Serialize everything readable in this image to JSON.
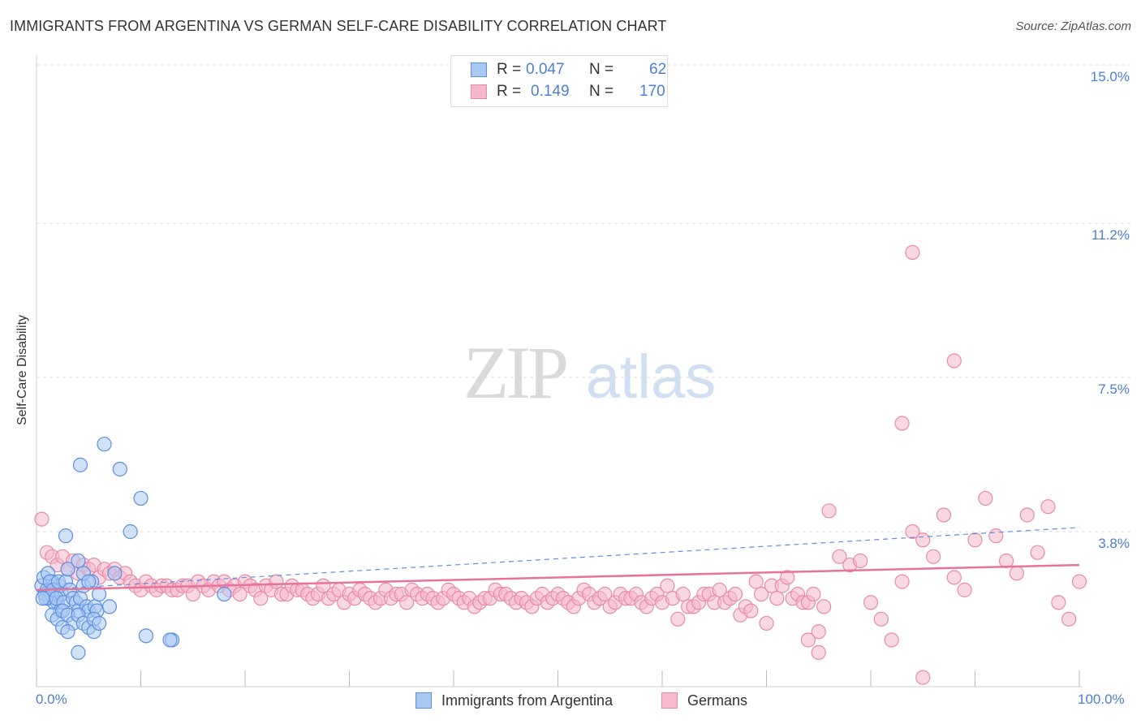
{
  "title": "IMMIGRANTS FROM ARGENTINA VS GERMAN SELF-CARE DISABILITY CORRELATION CHART",
  "source": "Source: ZipAtlas.com",
  "colors": {
    "blue_fill": "#a9c8f2",
    "blue_stroke": "#5b8fe0",
    "blue_line": "#5b8fe0",
    "pink_fill": "#f6b8cb",
    "pink_stroke": "#e88aa8",
    "pink_line": "#e8739a",
    "axis_text": "#4a7fd4",
    "grid": "#dddddd"
  },
  "stats": [
    {
      "r_label": "R =",
      "r_value": "0.047",
      "n_label": "N =",
      "n_value": "62",
      "series": "blue"
    },
    {
      "r_label": "R =",
      "r_value": "0.149",
      "n_label": "N =",
      "n_value": "170",
      "series": "pink"
    }
  ],
  "legend": [
    {
      "label": "Immigrants from Argentina",
      "series": "blue"
    },
    {
      "label": "Germans",
      "series": "pink"
    }
  ],
  "chart_data": {
    "type": "scatter",
    "title": "IMMIGRANTS FROM ARGENTINA VS GERMAN SELF-CARE DISABILITY CORRELATION CHART",
    "xlabel": "",
    "ylabel": "Self-Care Disability",
    "xlim": [
      0,
      100
    ],
    "ylim": [
      0,
      15.5
    ],
    "x_tick_labels": [
      "0.0%",
      "100.0%"
    ],
    "y_ticks": [
      3.8,
      7.5,
      11.2,
      15.0
    ],
    "y_tick_labels": [
      "3.8%",
      "7.5%",
      "11.2%",
      "15.0%"
    ],
    "grid": true,
    "legend_position": "bottom-center",
    "series": [
      {
        "name": "Immigrants from Argentina",
        "color": "#5b8fe0",
        "trend": {
          "x": [
            0,
            100
          ],
          "y": [
            2.4,
            3.9
          ],
          "style": "dashed"
        },
        "points": [
          [
            0.5,
            2.5
          ],
          [
            0.8,
            2.3
          ],
          [
            1.0,
            2.4
          ],
          [
            1.2,
            2.2
          ],
          [
            1.5,
            2.6
          ],
          [
            1.8,
            2.4
          ],
          [
            2.0,
            2.1
          ],
          [
            2.2,
            2.5
          ],
          [
            0.7,
            2.7
          ],
          [
            1.1,
            2.8
          ],
          [
            1.4,
            2.3
          ],
          [
            1.7,
            2.1
          ],
          [
            0.9,
            2.2
          ],
          [
            1.3,
            2.6
          ],
          [
            1.6,
            2.4
          ],
          [
            2.4,
            2.3
          ],
          [
            0.6,
            2.2
          ],
          [
            1.9,
            2.2
          ],
          [
            2.1,
            2.6
          ],
          [
            2.3,
            1.9
          ],
          [
            2.6,
            2.1
          ],
          [
            2.8,
            2.6
          ],
          [
            3.0,
            2.9
          ],
          [
            3.2,
            2.4
          ],
          [
            3.5,
            2.2
          ],
          [
            3.8,
            2.1
          ],
          [
            4.0,
            1.9
          ],
          [
            4.2,
            2.2
          ],
          [
            4.5,
            2.5
          ],
          [
            4.8,
            2.0
          ],
          [
            5.0,
            1.9
          ],
          [
            5.3,
            2.6
          ],
          [
            5.6,
            2.0
          ],
          [
            5.8,
            1.9
          ],
          [
            6.0,
            2.3
          ],
          [
            1.5,
            1.8
          ],
          [
            2.0,
            1.7
          ],
          [
            2.5,
            1.9
          ],
          [
            3.0,
            1.8
          ],
          [
            3.5,
            1.6
          ],
          [
            4.0,
            1.8
          ],
          [
            4.5,
            1.6
          ],
          [
            5.0,
            1.5
          ],
          [
            5.5,
            1.7
          ],
          [
            2.5,
            1.5
          ],
          [
            3.0,
            1.4
          ],
          [
            4.0,
            3.1
          ],
          [
            4.5,
            2.8
          ],
          [
            5.0,
            2.6
          ],
          [
            2.8,
            3.7
          ],
          [
            4.2,
            5.4
          ],
          [
            4.0,
            0.9
          ],
          [
            5.5,
            1.4
          ],
          [
            6.0,
            1.6
          ],
          [
            7.0,
            2.0
          ],
          [
            9.0,
            3.8
          ],
          [
            7.5,
            2.8
          ],
          [
            10.0,
            4.6
          ],
          [
            8.0,
            5.3
          ],
          [
            6.5,
            5.9
          ],
          [
            13.0,
            1.2
          ],
          [
            18.0,
            2.3
          ],
          [
            10.5,
            1.3
          ],
          [
            12.8,
            1.2
          ]
        ]
      },
      {
        "name": "Germans",
        "color": "#e8739a",
        "trend": {
          "x": [
            0,
            100
          ],
          "y": [
            2.4,
            3.0
          ],
          "style": "solid"
        },
        "points": [
          [
            0.5,
            4.1
          ],
          [
            1.0,
            3.3
          ],
          [
            1.5,
            3.2
          ],
          [
            2.0,
            3.0
          ],
          [
            2.5,
            3.2
          ],
          [
            3.0,
            2.9
          ],
          [
            3.5,
            3.1
          ],
          [
            4.0,
            2.8
          ],
          [
            4.5,
            3.0
          ],
          [
            5.0,
            2.9
          ],
          [
            5.5,
            3.0
          ],
          [
            6.0,
            2.7
          ],
          [
            6.5,
            2.9
          ],
          [
            7.0,
            2.8
          ],
          [
            7.5,
            2.9
          ],
          [
            8.0,
            2.7
          ],
          [
            8.5,
            2.8
          ],
          [
            9.0,
            2.6
          ],
          [
            9.5,
            2.5
          ],
          [
            10.0,
            2.4
          ],
          [
            10.5,
            2.6
          ],
          [
            11.0,
            2.5
          ],
          [
            11.5,
            2.4
          ],
          [
            12.0,
            2.5
          ],
          [
            12.5,
            2.5
          ],
          [
            13.0,
            2.4
          ],
          [
            13.5,
            2.4
          ],
          [
            14.0,
            2.5
          ],
          [
            14.5,
            2.5
          ],
          [
            15.0,
            2.3
          ],
          [
            15.5,
            2.6
          ],
          [
            16.0,
            2.5
          ],
          [
            16.5,
            2.4
          ],
          [
            17.0,
            2.6
          ],
          [
            17.5,
            2.5
          ],
          [
            18.0,
            2.6
          ],
          [
            18.5,
            2.4
          ],
          [
            19.0,
            2.5
          ],
          [
            19.5,
            2.3
          ],
          [
            20.0,
            2.6
          ],
          [
            20.5,
            2.5
          ],
          [
            21.0,
            2.4
          ],
          [
            21.5,
            2.2
          ],
          [
            22.0,
            2.5
          ],
          [
            22.5,
            2.4
          ],
          [
            23.0,
            2.6
          ],
          [
            23.5,
            2.3
          ],
          [
            24.0,
            2.3
          ],
          [
            24.5,
            2.5
          ],
          [
            25.0,
            2.4
          ],
          [
            25.5,
            2.4
          ],
          [
            26.0,
            2.3
          ],
          [
            26.5,
            2.2
          ],
          [
            27.0,
            2.3
          ],
          [
            27.5,
            2.5
          ],
          [
            28.0,
            2.2
          ],
          [
            28.5,
            2.3
          ],
          [
            29.0,
            2.4
          ],
          [
            29.5,
            2.1
          ],
          [
            30.0,
            2.3
          ],
          [
            30.5,
            2.2
          ],
          [
            31.0,
            2.4
          ],
          [
            31.5,
            2.3
          ],
          [
            32.0,
            2.2
          ],
          [
            32.5,
            2.1
          ],
          [
            33.0,
            2.2
          ],
          [
            33.5,
            2.4
          ],
          [
            34.0,
            2.2
          ],
          [
            34.5,
            2.3
          ],
          [
            35.0,
            2.3
          ],
          [
            35.5,
            2.1
          ],
          [
            36.0,
            2.4
          ],
          [
            36.5,
            2.3
          ],
          [
            37.0,
            2.2
          ],
          [
            37.5,
            2.3
          ],
          [
            38.0,
            2.2
          ],
          [
            38.5,
            2.1
          ],
          [
            39.0,
            2.2
          ],
          [
            39.5,
            2.4
          ],
          [
            40.0,
            2.3
          ],
          [
            40.5,
            2.2
          ],
          [
            41.0,
            2.1
          ],
          [
            41.5,
            2.2
          ],
          [
            42.0,
            2.0
          ],
          [
            42.5,
            2.1
          ],
          [
            43.0,
            2.2
          ],
          [
            43.5,
            2.2
          ],
          [
            44.0,
            2.4
          ],
          [
            44.5,
            2.3
          ],
          [
            45.0,
            2.3
          ],
          [
            45.5,
            2.2
          ],
          [
            46.0,
            2.1
          ],
          [
            46.5,
            2.2
          ],
          [
            47.0,
            2.1
          ],
          [
            47.5,
            2.0
          ],
          [
            48.0,
            2.2
          ],
          [
            48.5,
            2.3
          ],
          [
            49.0,
            2.1
          ],
          [
            49.5,
            2.2
          ],
          [
            50.0,
            2.3
          ],
          [
            50.5,
            2.2
          ],
          [
            51.0,
            2.1
          ],
          [
            51.5,
            2.0
          ],
          [
            52.0,
            2.2
          ],
          [
            52.5,
            2.4
          ],
          [
            53.0,
            2.3
          ],
          [
            53.5,
            2.1
          ],
          [
            54.0,
            2.2
          ],
          [
            54.5,
            2.3
          ],
          [
            55.0,
            2.0
          ],
          [
            55.5,
            2.1
          ],
          [
            56.0,
            2.3
          ],
          [
            56.5,
            2.2
          ],
          [
            57.0,
            2.2
          ],
          [
            57.5,
            2.3
          ],
          [
            58.0,
            2.1
          ],
          [
            58.5,
            2.0
          ],
          [
            59.0,
            2.2
          ],
          [
            59.5,
            2.3
          ],
          [
            60.0,
            2.1
          ],
          [
            60.5,
            2.5
          ],
          [
            61.0,
            2.2
          ],
          [
            61.5,
            1.7
          ],
          [
            62.0,
            2.3
          ],
          [
            62.5,
            2.0
          ],
          [
            63.0,
            2.0
          ],
          [
            63.5,
            2.1
          ],
          [
            64.0,
            2.3
          ],
          [
            64.5,
            2.3
          ],
          [
            65.0,
            2.1
          ],
          [
            65.5,
            2.4
          ],
          [
            66.0,
            2.1
          ],
          [
            66.5,
            2.2
          ],
          [
            67.0,
            2.3
          ],
          [
            67.5,
            1.8
          ],
          [
            68.0,
            2.0
          ],
          [
            68.5,
            1.9
          ],
          [
            69.0,
            2.6
          ],
          [
            69.5,
            2.3
          ],
          [
            70.0,
            1.6
          ],
          [
            70.5,
            2.5
          ],
          [
            71.0,
            2.2
          ],
          [
            71.5,
            2.5
          ],
          [
            72.0,
            2.7
          ],
          [
            72.5,
            2.2
          ],
          [
            73.0,
            2.3
          ],
          [
            73.5,
            2.1
          ],
          [
            74.0,
            2.1
          ],
          [
            74.5,
            2.3
          ],
          [
            75.0,
            1.4
          ],
          [
            75.5,
            2.0
          ],
          [
            76.0,
            4.3
          ],
          [
            77.0,
            3.2
          ],
          [
            78.0,
            3.0
          ],
          [
            79.0,
            3.1
          ],
          [
            80.0,
            2.1
          ],
          [
            81.0,
            1.7
          ],
          [
            82.0,
            1.2
          ],
          [
            83.0,
            2.6
          ],
          [
            84.0,
            3.8
          ],
          [
            85.0,
            3.6
          ],
          [
            86.0,
            3.2
          ],
          [
            87.0,
            4.2
          ],
          [
            88.0,
            2.7
          ],
          [
            89.0,
            2.4
          ],
          [
            90.0,
            3.6
          ],
          [
            91.0,
            4.6
          ],
          [
            92.0,
            3.7
          ],
          [
            93.0,
            3.1
          ],
          [
            94.0,
            2.8
          ],
          [
            95.0,
            4.2
          ],
          [
            96.0,
            3.3
          ],
          [
            97.0,
            4.4
          ],
          [
            98.0,
            2.1
          ],
          [
            99.0,
            1.7
          ],
          [
            100.0,
            2.6
          ],
          [
            84.0,
            10.5
          ],
          [
            88.0,
            7.9
          ],
          [
            83.0,
            6.4
          ],
          [
            85.0,
            0.3
          ],
          [
            74.0,
            1.2
          ],
          [
            75.0,
            0.9
          ]
        ]
      }
    ]
  }
}
